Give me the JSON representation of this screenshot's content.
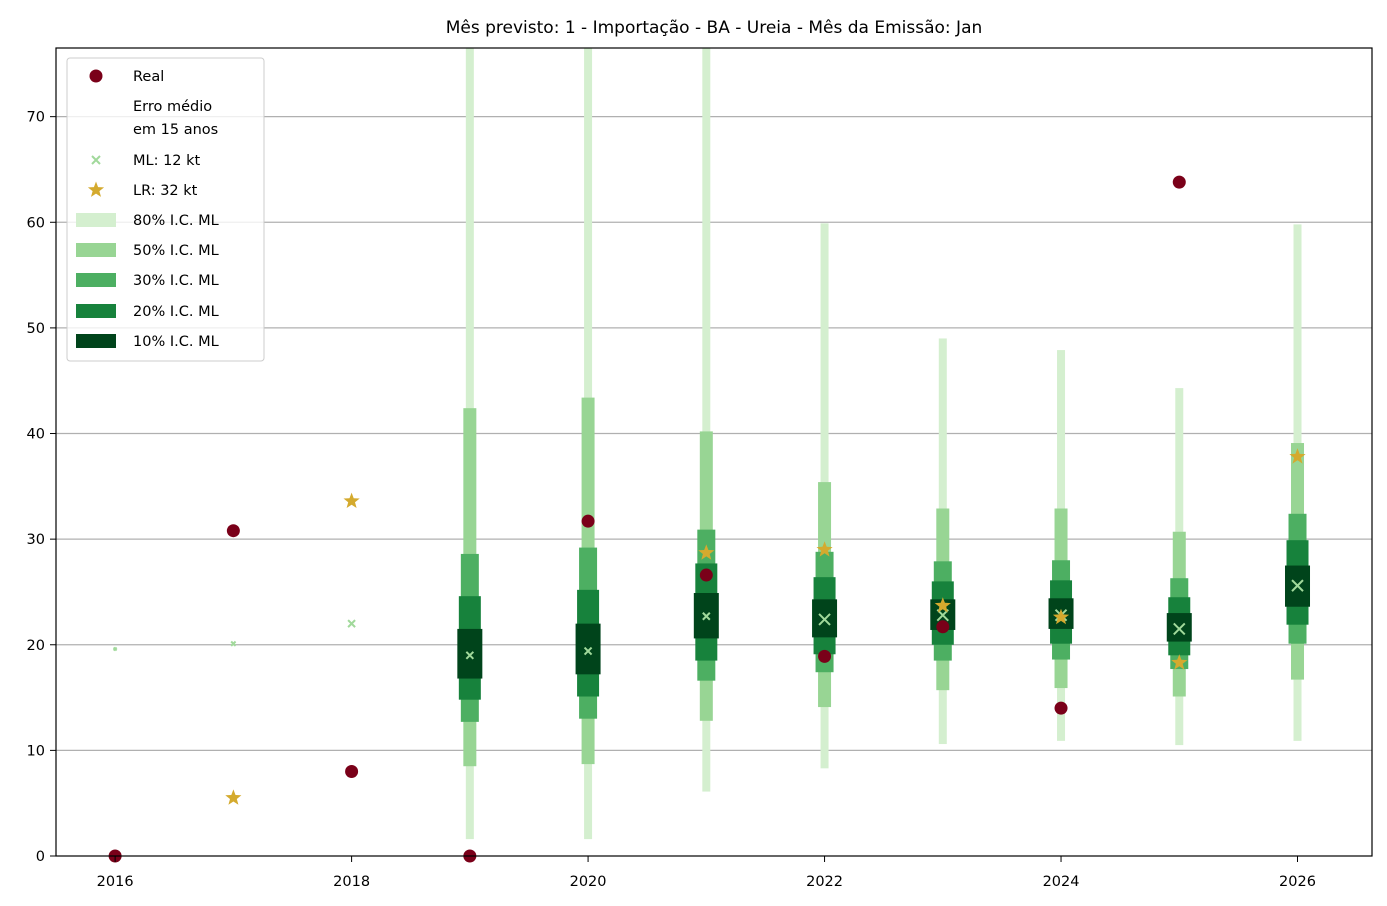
{
  "chart_data": {
    "type": "scatter",
    "title": "Mês previsto: 1 - Importação - BA - Ureia - Mês da Emissão: Jan",
    "xlabel": "",
    "ylabel": "",
    "xlim": [
      2015.5,
      2026.63
    ],
    "ylim": [
      0,
      76.5
    ],
    "xticks": [
      2016,
      2018,
      2020,
      2022,
      2024,
      2026
    ],
    "yticks": [
      0,
      10,
      20,
      30,
      40,
      50,
      60,
      70
    ],
    "grid": "horizontal",
    "legend_position": "top-left",
    "colors": {
      "real": "#7a0019",
      "ml": "#a1d99b",
      "lr": "#d4aa2e",
      "ci80": "#d4efcf",
      "ci50": "#98d594",
      "ci30": "#4daf62",
      "ci20": "#17823c",
      "ci10": "#00441b",
      "grid": "#b0b0b0"
    },
    "legend": [
      {
        "key": "real",
        "label": "Real"
      },
      {
        "key": "header",
        "label": "Erro médio",
        "label2": "em 15 anos"
      },
      {
        "key": "ml",
        "label": "ML: 12 kt"
      },
      {
        "key": "lr",
        "label": "LR: 32 kt"
      },
      {
        "key": "ci80",
        "label": "80% I.C. ML"
      },
      {
        "key": "ci50",
        "label": "50% I.C. ML"
      },
      {
        "key": "ci30",
        "label": "30% I.C. ML"
      },
      {
        "key": "ci20",
        "label": "20% I.C. ML"
      },
      {
        "key": "ci10",
        "label": "10% I.C. ML"
      }
    ],
    "series": [
      {
        "name": "Real",
        "x": [
          2016,
          2017,
          2018,
          2019,
          2020,
          2021,
          2022,
          2023,
          2024,
          2025
        ],
        "y": [
          0,
          30.8,
          8.0,
          0,
          31.7,
          26.6,
          18.9,
          21.7,
          14.0,
          63.8
        ]
      },
      {
        "name": "ML: 12 kt",
        "x": [
          2016,
          2017,
          2018,
          2019,
          2020,
          2021,
          2022,
          2023,
          2024,
          2025,
          2026
        ],
        "y": [
          19.6,
          20.1,
          22.0,
          19.0,
          19.4,
          22.7,
          22.4,
          22.8,
          22.8,
          21.5,
          25.6
        ]
      },
      {
        "name": "LR: 32 kt",
        "x": [
          2017,
          2018,
          2021,
          2022,
          2023,
          2024,
          2025,
          2026
        ],
        "y": [
          5.5,
          33.6,
          28.7,
          29.0,
          23.7,
          22.6,
          18.3,
          37.8
        ]
      }
    ],
    "intervals": [
      {
        "x": 2019,
        "ci80": [
          1.6,
          80.0
        ],
        "ci50": [
          8.5,
          42.4
        ],
        "ci30": [
          12.7,
          28.6
        ],
        "ci20": [
          14.8,
          24.6
        ],
        "ci10": [
          16.8,
          21.5
        ]
      },
      {
        "x": 2020,
        "ci80": [
          1.6,
          80.0
        ],
        "ci50": [
          8.7,
          43.4
        ],
        "ci30": [
          13.0,
          29.2
        ],
        "ci20": [
          15.1,
          25.2
        ],
        "ci10": [
          17.2,
          22.0
        ]
      },
      {
        "x": 2021,
        "ci80": [
          6.1,
          80.0
        ],
        "ci50": [
          12.8,
          40.2
        ],
        "ci30": [
          16.6,
          30.9
        ],
        "ci20": [
          18.5,
          27.7
        ],
        "ci10": [
          20.6,
          24.9
        ]
      },
      {
        "x": 2022,
        "ci80": [
          8.3,
          59.9
        ],
        "ci50": [
          14.1,
          35.4
        ],
        "ci30": [
          17.4,
          28.8
        ],
        "ci20": [
          19.1,
          26.4
        ],
        "ci10": [
          20.7,
          24.3
        ]
      },
      {
        "x": 2023,
        "ci80": [
          10.6,
          49.0
        ],
        "ci50": [
          15.7,
          32.9
        ],
        "ci30": [
          18.5,
          27.9
        ],
        "ci20": [
          20.0,
          26.0
        ],
        "ci10": [
          21.4,
          24.3
        ]
      },
      {
        "x": 2024,
        "ci80": [
          10.9,
          47.9
        ],
        "ci50": [
          15.9,
          32.9
        ],
        "ci30": [
          18.6,
          28.0
        ],
        "ci20": [
          20.1,
          26.1
        ],
        "ci10": [
          21.5,
          24.4
        ]
      },
      {
        "x": 2025,
        "ci80": [
          10.5,
          44.3
        ],
        "ci50": [
          15.1,
          30.7
        ],
        "ci30": [
          17.7,
          26.3
        ],
        "ci20": [
          19.0,
          24.5
        ],
        "ci10": [
          20.3,
          23.0
        ]
      },
      {
        "x": 2026,
        "ci80": [
          10.9,
          59.8
        ],
        "ci50": [
          16.7,
          39.1
        ],
        "ci30": [
          20.1,
          32.4
        ],
        "ci20": [
          21.9,
          29.9
        ],
        "ci10": [
          23.6,
          27.5
        ]
      }
    ]
  }
}
